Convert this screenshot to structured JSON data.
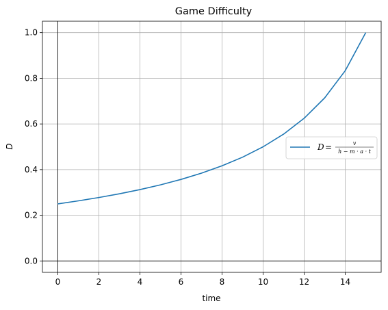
{
  "chart_data": {
    "type": "line",
    "title": "Game Difficulty",
    "xlabel": "time",
    "ylabel": "D",
    "xlim": [
      -0.75,
      15.75
    ],
    "ylim": [
      -0.05,
      1.05
    ],
    "x_ticks": [
      0,
      2,
      4,
      6,
      8,
      10,
      12,
      14
    ],
    "y_ticks": [
      0.0,
      0.2,
      0.4,
      0.6,
      0.8,
      1.0
    ],
    "x_tick_labels": [
      "0",
      "2",
      "4",
      "6",
      "8",
      "10",
      "12",
      "14"
    ],
    "y_tick_labels": [
      "0.0",
      "0.2",
      "0.4",
      "0.6",
      "0.8",
      "1.0"
    ],
    "grid": true,
    "legend_position": "center-right",
    "reference_lines": {
      "x": 0,
      "y": 0
    },
    "series": [
      {
        "name": "D = v / (h − m · a · t)",
        "color": "#1f77b4",
        "x": [
          0,
          1,
          2,
          3,
          4,
          5,
          6,
          7,
          8,
          9,
          10,
          11,
          12,
          13,
          14,
          15
        ],
        "y": [
          0.25,
          0.2632,
          0.2778,
          0.2941,
          0.3125,
          0.3333,
          0.3571,
          0.3846,
          0.4167,
          0.4545,
          0.5,
          0.5556,
          0.625,
          0.7143,
          0.8333,
          1.0
        ]
      }
    ],
    "legend": {
      "lhs": "D",
      "eq": "=",
      "num": "v",
      "den": "h − m · a · t"
    }
  }
}
